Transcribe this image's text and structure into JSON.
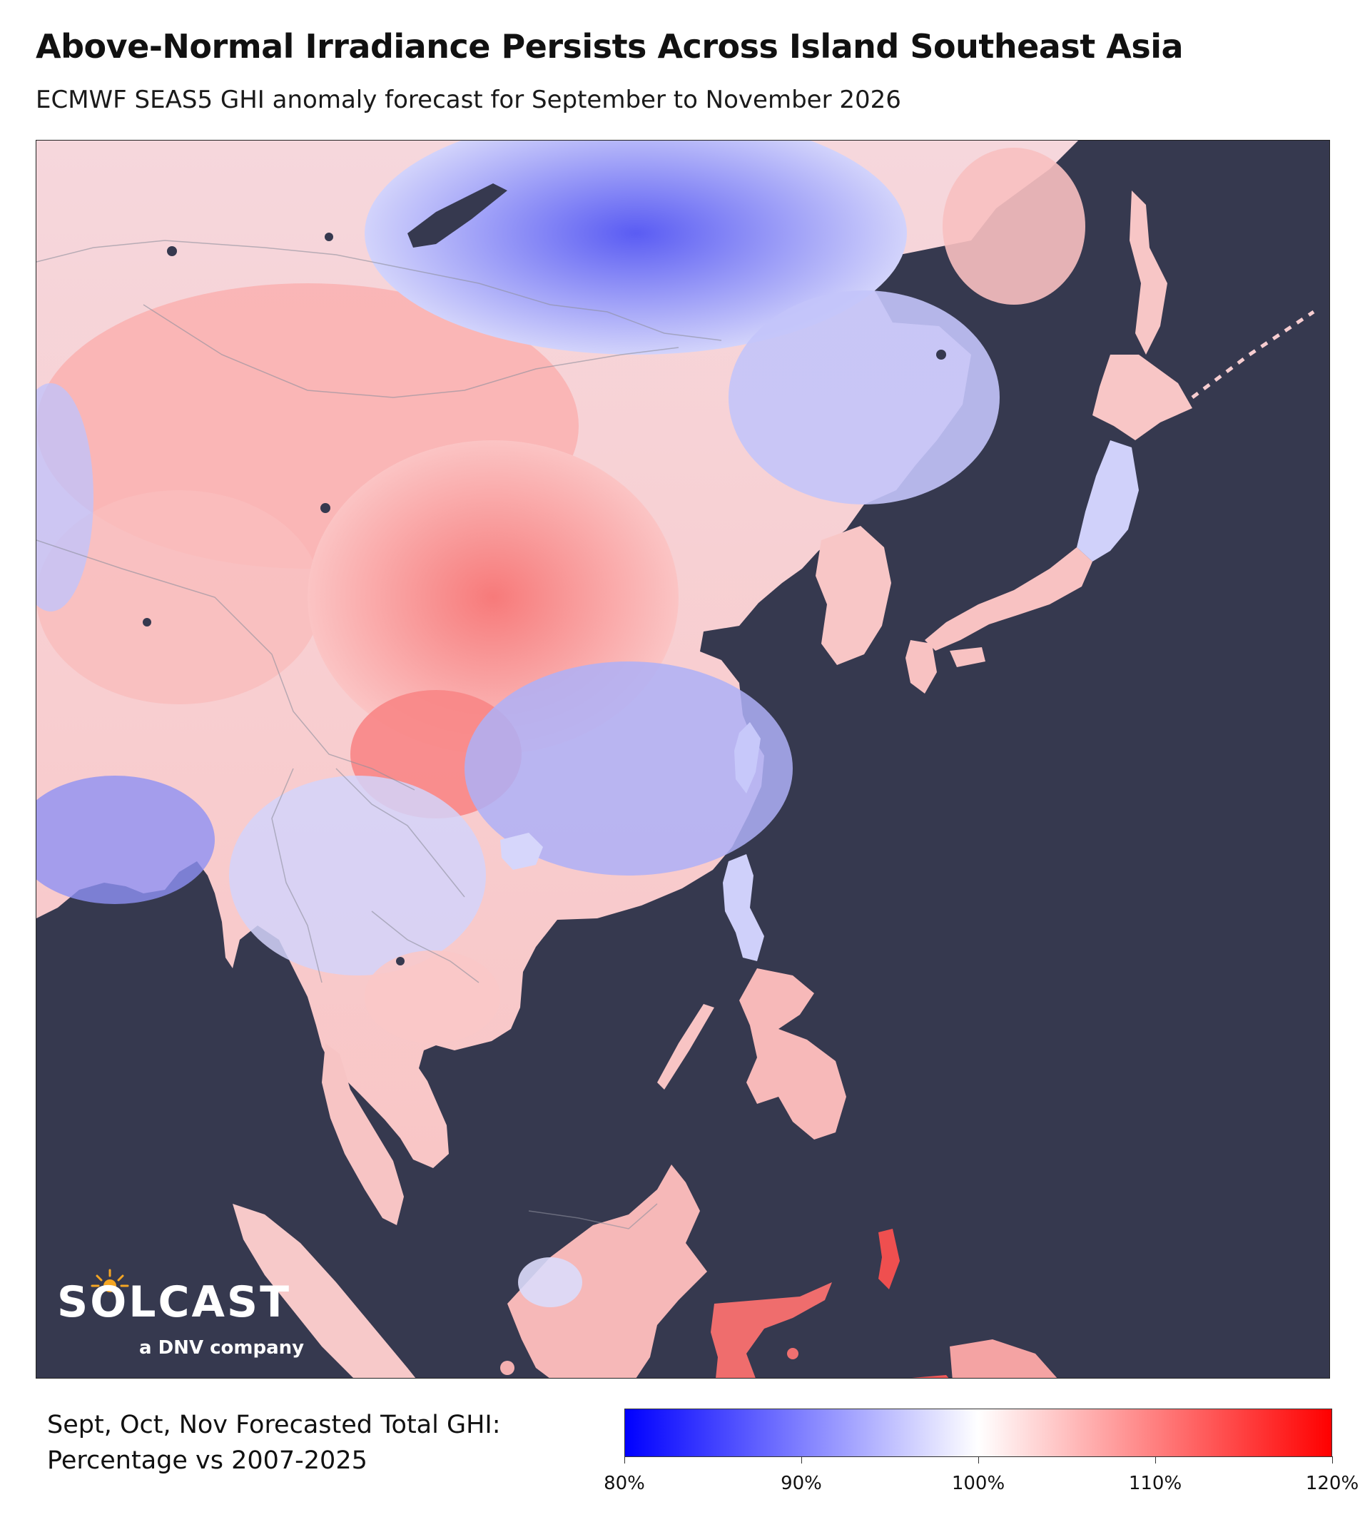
{
  "header": {
    "title": "Above-Normal Irradiance Persists Across Island Southeast Asia",
    "subtitle": "ECMWF SEAS5 GHI anomaly forecast for September to November 2026"
  },
  "map": {
    "ocean_color": "#36394f",
    "anomaly_regions": [
      {
        "name": "Mongolia / Northern China",
        "level": 1.06
      },
      {
        "name": "Central China",
        "level": 1.1
      },
      {
        "name": "Siberia",
        "level": 0.89
      },
      {
        "name": "Northeast China",
        "level": 0.94
      },
      {
        "name": "Southern China",
        "level": 0.93
      },
      {
        "name": "Indochina",
        "level": 0.96
      },
      {
        "name": "Japan",
        "level": 1.05
      },
      {
        "name": "Korea",
        "level": 1.04
      },
      {
        "name": "Philippines",
        "level": 0.97
      },
      {
        "name": "Borneo",
        "level": 1.06
      },
      {
        "name": "Sumatra",
        "level": 1.04
      },
      {
        "name": "Sulawesi",
        "level": 1.13
      },
      {
        "name": "New Guinea",
        "level": 1.09
      },
      {
        "name": "Maluku",
        "level": 1.17
      }
    ]
  },
  "logo": {
    "wordmark": "SOLCAST",
    "tagline": "a DNV company"
  },
  "legend": {
    "line1": "Sept, Oct, Nov Forecasted Total GHI:",
    "line2": "Percentage vs 2007-2025",
    "colors": {
      "low": "#0000ff",
      "mid": "#ffffff",
      "high": "#ff0000"
    },
    "ticks": [
      {
        "label": "80%",
        "value": 80
      },
      {
        "label": "90%",
        "value": 90
      },
      {
        "label": "100%",
        "value": 100
      },
      {
        "label": "110%",
        "value": 110
      },
      {
        "label": "120%",
        "value": 120
      }
    ]
  }
}
